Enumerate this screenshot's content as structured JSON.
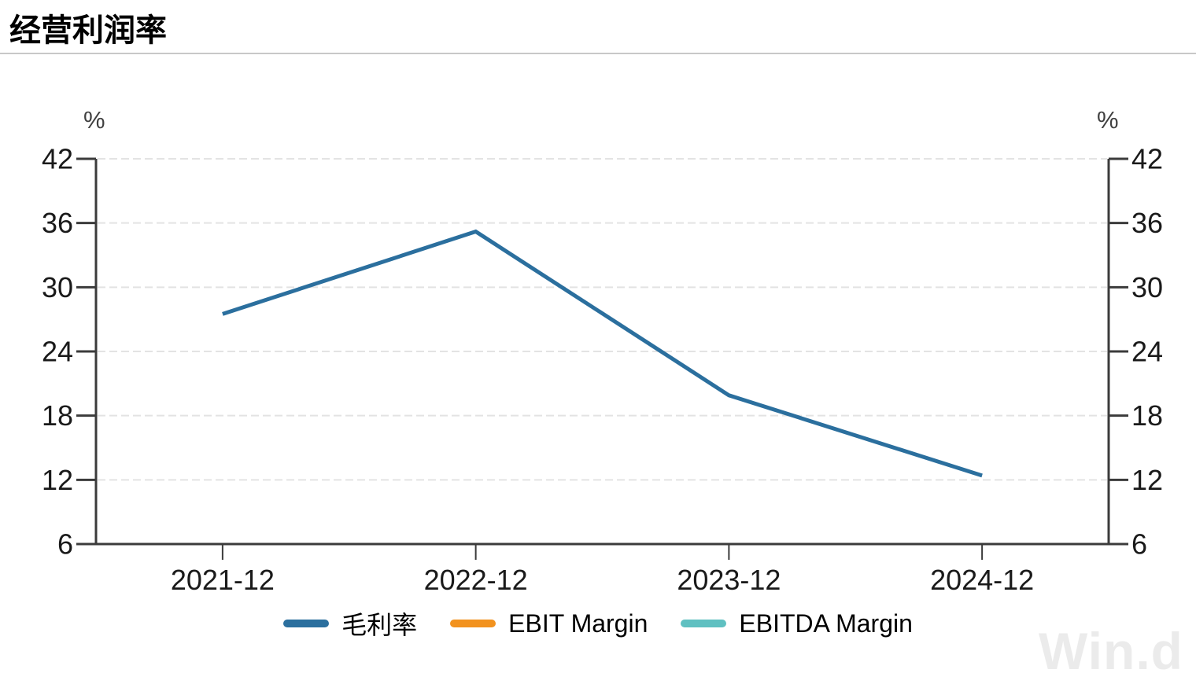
{
  "page": {
    "title": "经营利润率",
    "watermark": "Win.d"
  },
  "chart_data": {
    "type": "line",
    "title": "经营利润率",
    "categories": [
      "2021-12",
      "2022-12",
      "2023-12",
      "2024-12"
    ],
    "series": [
      {
        "name": "毛利率",
        "color": "#2b6f9e",
        "values": [
          27.5,
          35.2,
          19.9,
          12.4
        ]
      },
      {
        "name": "EBIT Margin",
        "color": "#f2921e",
        "values": []
      },
      {
        "name": "EBITDA Margin",
        "color": "#5fc0c1",
        "values": []
      }
    ],
    "y_axis": {
      "unit": "%",
      "min": 6,
      "max": 42,
      "ticks": [
        42,
        36,
        30,
        24,
        18,
        12,
        6
      ],
      "dual": true
    },
    "grid": "dashed-horizontal",
    "legend_position": "bottom",
    "colors": {
      "axis": "#3b3b3b",
      "gridline": "#e3e3e3",
      "tick_label": "#1a1a1a",
      "unit_label": "#404040"
    }
  }
}
